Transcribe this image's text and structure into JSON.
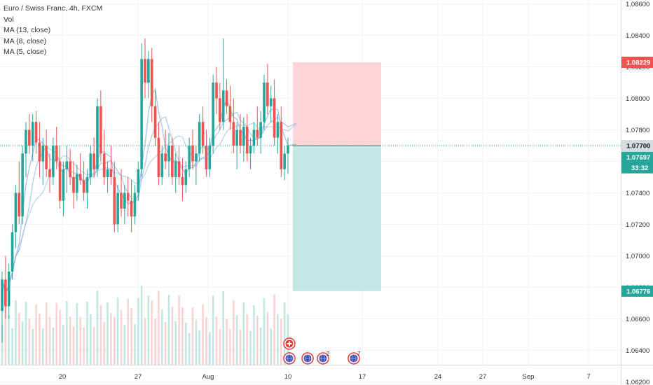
{
  "legend": {
    "symbol": "Euro / Swiss Franc, 4h, FXCM",
    "vol": "Vol",
    "ma13": "MA (13, close)",
    "ma8": "MA (8, close)",
    "ma5": "MA (5, close)"
  },
  "colors": {
    "up": "#26a69a",
    "down": "#ef5350",
    "ma": "#8fb4dc",
    "profit_zone": "#b2dfdb",
    "loss_zone": "#ffcdd2",
    "entry_line": "#26a69a"
  },
  "price_labels": {
    "target_loss": "1.08229",
    "entry": "1.07700",
    "last": "1.07697",
    "countdown": "33:32",
    "target_profit": "1.06776"
  },
  "event_markers": [
    {
      "icon": "flag-icon",
      "x_label": "Aug 10",
      "count": ""
    },
    {
      "icon": "globe-icon",
      "x_label": "Aug 10",
      "count": ""
    },
    {
      "icon": "globe-icon",
      "x_label": "Aug 11",
      "count": ""
    },
    {
      "icon": "globe-icon",
      "x_label": "Aug 13",
      "count": "2"
    },
    {
      "icon": "globe-icon",
      "x_label": "Aug 14",
      "count": "7"
    }
  ],
  "chart_data": {
    "type": "candlestick",
    "title": "Euro / Swiss Franc, 4h, FXCM",
    "indicators": [
      "Vol",
      "MA (13, close)",
      "MA (8, close)",
      "MA (5, close)"
    ],
    "ylim": [
      1.061,
      1.087
    ],
    "y_ticks": [
      "1.06200",
      "1.06400",
      "1.06600",
      "1.06800",
      "1.07000",
      "1.07200",
      "1.07400",
      "1.07600",
      "1.07800",
      "1.08000",
      "1.08200",
      "1.08400",
      "1.08600"
    ],
    "x_ticks": [
      "20",
      "27",
      "Aug",
      "10",
      "17",
      "24",
      "27",
      "Sep",
      "7"
    ],
    "grid": true,
    "position_box": {
      "entry": 1.077,
      "stop": 1.08229,
      "target": 1.06776
    },
    "ohlc_approx": [
      [
        1.0665,
        1.069,
        1.0645,
        1.0685
      ],
      [
        1.0685,
        1.07,
        1.066,
        1.0668
      ],
      [
        1.0668,
        1.0695,
        1.066,
        1.069
      ],
      [
        1.069,
        1.072,
        1.0685,
        1.0715
      ],
      [
        1.0715,
        1.0745,
        1.0705,
        1.074
      ],
      [
        1.074,
        1.076,
        1.072,
        1.0725
      ],
      [
        1.0725,
        1.077,
        1.072,
        1.0765
      ],
      [
        1.0765,
        1.0785,
        1.075,
        1.078
      ],
      [
        1.078,
        1.079,
        1.0765,
        1.077
      ],
      [
        1.077,
        1.079,
        1.076,
        1.0785
      ],
      [
        1.0785,
        1.0792,
        1.0765,
        1.0772
      ],
      [
        1.0772,
        1.0785,
        1.075,
        1.076
      ],
      [
        1.076,
        1.0775,
        1.0745,
        1.077
      ],
      [
        1.077,
        1.078,
        1.075,
        1.0755
      ],
      [
        1.0755,
        1.0765,
        1.074,
        1.075
      ],
      [
        1.075,
        1.0775,
        1.0745,
        1.077
      ],
      [
        1.077,
        1.0782,
        1.0755,
        1.076
      ],
      [
        1.076,
        1.077,
        1.073,
        1.0735
      ],
      [
        1.0735,
        1.076,
        1.0725,
        1.0755
      ],
      [
        1.0755,
        1.077,
        1.074,
        1.076
      ],
      [
        1.076,
        1.0768,
        1.0745,
        1.075
      ],
      [
        1.075,
        1.076,
        1.073,
        1.074
      ],
      [
        1.074,
        1.0758,
        1.0735,
        1.0752
      ],
      [
        1.0752,
        1.0765,
        1.0745,
        1.0748
      ],
      [
        1.0748,
        1.076,
        1.0735,
        1.074
      ],
      [
        1.074,
        1.0755,
        1.073,
        1.075
      ],
      [
        1.075,
        1.077,
        1.0745,
        1.0765
      ],
      [
        1.0765,
        1.0775,
        1.075,
        1.0755
      ],
      [
        1.0755,
        1.08,
        1.075,
        1.0795
      ],
      [
        1.0795,
        1.0805,
        1.076,
        1.0765
      ],
      [
        1.0765,
        1.078,
        1.0745,
        1.075
      ],
      [
        1.075,
        1.076,
        1.074,
        1.0755
      ],
      [
        1.0755,
        1.077,
        1.0745,
        1.075
      ],
      [
        1.075,
        1.076,
        1.0715,
        1.072
      ],
      [
        1.072,
        1.0745,
        1.0715,
        1.074
      ],
      [
        1.074,
        1.0755,
        1.0725,
        1.073
      ],
      [
        1.073,
        1.0745,
        1.072,
        1.074
      ],
      [
        1.074,
        1.075,
        1.0725,
        1.0735
      ],
      [
        1.0735,
        1.0748,
        1.0715,
        1.0725
      ],
      [
        1.0725,
        1.0745,
        1.072,
        1.074
      ],
      [
        1.074,
        1.076,
        1.0735,
        1.0755
      ],
      [
        1.0755,
        1.0835,
        1.075,
        1.0825
      ],
      [
        1.0825,
        1.0838,
        1.08,
        1.081
      ],
      [
        1.081,
        1.083,
        1.08,
        1.0825
      ],
      [
        1.0825,
        1.0832,
        1.0785,
        1.0795
      ],
      [
        1.0795,
        1.0805,
        1.077,
        1.0775
      ],
      [
        1.0775,
        1.0785,
        1.0745,
        1.075
      ],
      [
        1.075,
        1.077,
        1.0745,
        1.0765
      ],
      [
        1.0765,
        1.078,
        1.0755,
        1.076
      ],
      [
        1.076,
        1.0778,
        1.075,
        1.077
      ],
      [
        1.077,
        1.0775,
        1.0745,
        1.075
      ],
      [
        1.075,
        1.0765,
        1.074,
        1.076
      ],
      [
        1.076,
        1.077,
        1.0745,
        1.075
      ],
      [
        1.075,
        1.0762,
        1.0735,
        1.0745
      ],
      [
        1.0745,
        1.076,
        1.074,
        1.0755
      ],
      [
        1.0755,
        1.0775,
        1.075,
        1.077
      ],
      [
        1.077,
        1.078,
        1.0755,
        1.076
      ],
      [
        1.076,
        1.077,
        1.0745,
        1.0765
      ],
      [
        1.0765,
        1.079,
        1.076,
        1.0785
      ],
      [
        1.0785,
        1.0795,
        1.0765,
        1.077
      ],
      [
        1.077,
        1.078,
        1.075,
        1.0755
      ],
      [
        1.0755,
        1.0775,
        1.075,
        1.077
      ],
      [
        1.077,
        1.0815,
        1.0765,
        1.081
      ],
      [
        1.081,
        1.082,
        1.079,
        1.08
      ],
      [
        1.08,
        1.081,
        1.078,
        1.0785
      ],
      [
        1.0785,
        1.0838,
        1.078,
        1.0805
      ],
      [
        1.0805,
        1.0812,
        1.079,
        1.0795
      ],
      [
        1.0795,
        1.0808,
        1.078,
        1.0785
      ],
      [
        1.0785,
        1.08,
        1.0765,
        1.077
      ],
      [
        1.077,
        1.0785,
        1.0755,
        1.078
      ],
      [
        1.078,
        1.079,
        1.0765,
        1.077
      ],
      [
        1.077,
        1.0788,
        1.076,
        1.0782
      ],
      [
        1.0782,
        1.079,
        1.076,
        1.0765
      ],
      [
        1.0765,
        1.0775,
        1.0755,
        1.077
      ],
      [
        1.077,
        1.0785,
        1.0765,
        1.078
      ],
      [
        1.078,
        1.0795,
        1.077,
        1.0775
      ],
      [
        1.0775,
        1.0792,
        1.0765,
        1.0785
      ],
      [
        1.0785,
        1.0815,
        1.078,
        1.081
      ],
      [
        1.081,
        1.0822,
        1.079,
        1.0795
      ],
      [
        1.0795,
        1.0808,
        1.0785,
        1.08
      ],
      [
        1.08,
        1.0812,
        1.077,
        1.0775
      ],
      [
        1.0775,
        1.079,
        1.0765,
        1.0785
      ],
      [
        1.0785,
        1.0795,
        1.075,
        1.0755
      ],
      [
        1.0755,
        1.077,
        1.0748,
        1.0765
      ],
      [
        1.0765,
        1.0775,
        1.0752,
        1.077
      ]
    ]
  }
}
